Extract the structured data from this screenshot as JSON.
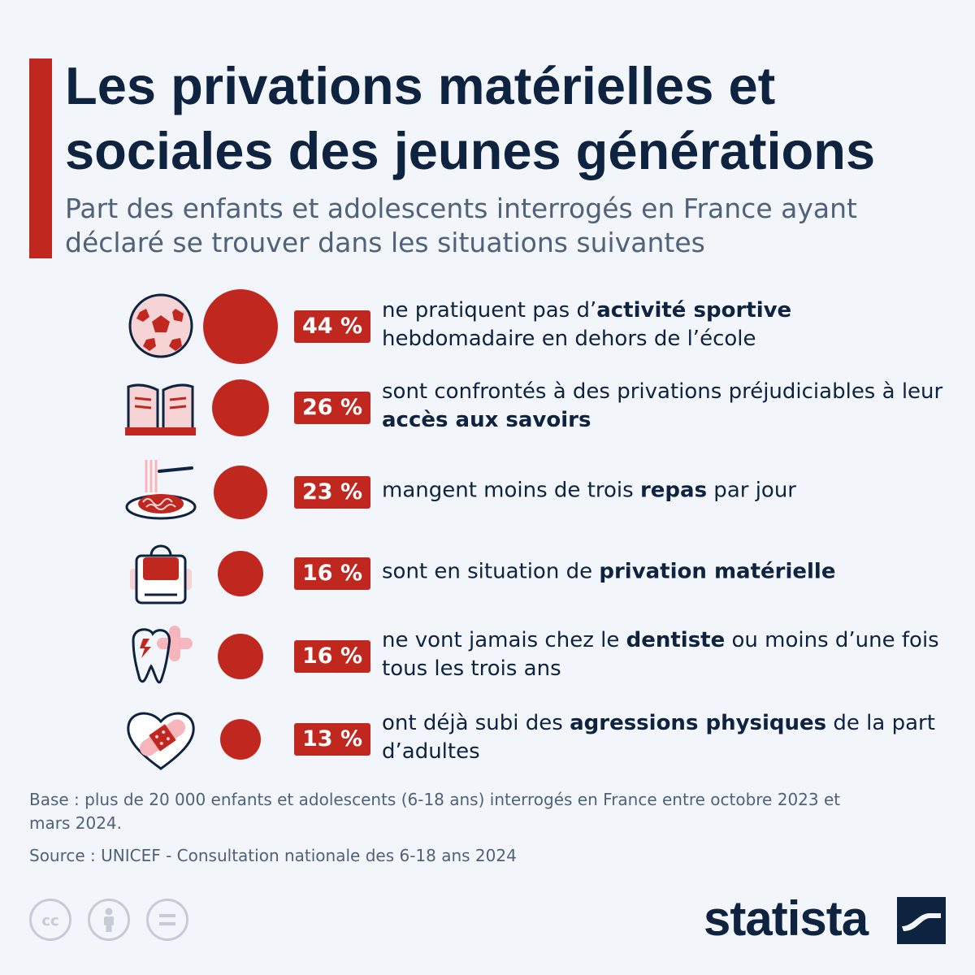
{
  "header": {
    "title": "Les privations matérielles et sociales des jeunes générations",
    "subtitle": "Part des enfants et adolescents interrogés en France ayant déclaré se trouver dans les situations suivantes"
  },
  "colors": {
    "accent": "#c0281f",
    "navy": "#0e2340",
    "muted": "#4f6279",
    "background": "#f2f5f9"
  },
  "chart_data": {
    "type": "bubble",
    "unit": "%",
    "items": [
      {
        "icon": "soccer-ball-icon",
        "value": 44,
        "value_label": "44 %",
        "text_parts": [
          "ne pratiquent pas d’",
          "activité sportive",
          " hebdomadaire en dehors de l’école"
        ]
      },
      {
        "icon": "open-book-icon",
        "value": 26,
        "value_label": "26 %",
        "text_parts": [
          "sont confrontés à des privations préjudiciables à leur ",
          "accès aux savoirs",
          ""
        ]
      },
      {
        "icon": "spaghetti-plate-icon",
        "value": 23,
        "value_label": "23 %",
        "text_parts": [
          "mangent moins de trois ",
          "repas",
          " par jour"
        ]
      },
      {
        "icon": "backpack-icon",
        "value": 16,
        "value_label": "16 %",
        "text_parts": [
          "sont en situation de ",
          "privation matérielle",
          ""
        ]
      },
      {
        "icon": "tooth-icon",
        "value": 16,
        "value_label": "16 %",
        "text_parts": [
          "ne vont jamais chez le ",
          "dentiste",
          " ou moins d’une fois tous les trois ans"
        ]
      },
      {
        "icon": "bandaged-heart-icon",
        "value": 13,
        "value_label": "13 %",
        "text_parts": [
          "ont déjà subi des ",
          "agressions physiques",
          " de la part d’adultes"
        ]
      }
    ]
  },
  "footer": {
    "base_note": "Base : plus de 20 000 enfants et adolescents (6-18 ans) interrogés en France entre octobre 2023 et mars 2024.",
    "source": "Source : UNICEF - Consultation nationale des 6-18 ans 2024",
    "license_icons": [
      "cc-icon",
      "attribution-icon",
      "no-derivatives-icon"
    ],
    "brand": "statista"
  }
}
